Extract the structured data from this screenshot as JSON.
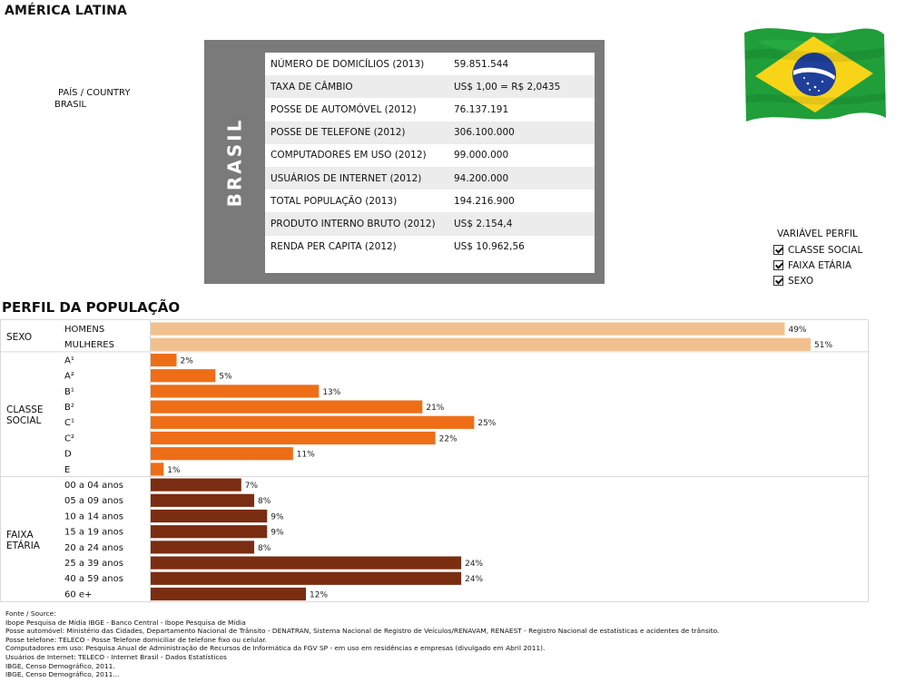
{
  "header": {
    "region_title": "AMÉRICA LATINA"
  },
  "country": {
    "label": "PAÍS / COUNTRY",
    "value": "BRASIL"
  },
  "info_panel": {
    "vertical_label": "BRASIL",
    "rows": [
      {
        "key": "NÚMERO DE DOMICÍLIOS (2013)",
        "value": "59.851.544"
      },
      {
        "key": "TAXA DE CÂMBIO",
        "value": "US$ 1,00 = R$ 2,0435"
      },
      {
        "key": "POSSE DE AUTOMÓVEL (2012)",
        "value": "76.137.191"
      },
      {
        "key": "POSSE DE TELEFONE (2012)",
        "value": "306.100.000"
      },
      {
        "key": "COMPUTADORES EM USO (2012)",
        "value": "99.000.000"
      },
      {
        "key": "USUÁRIOS DE INTERNET (2012)",
        "value": "94.200.000"
      },
      {
        "key": "TOTAL POPULAÇÃO (2013)",
        "value": "194.216.900"
      },
      {
        "key": "PRODUTO INTERNO BRUTO (2012)",
        "value": "US$ 2.154,4"
      },
      {
        "key": "RENDA PER CAPITA (2012)",
        "value": "US$ 10.962,56"
      }
    ]
  },
  "flag": {
    "icon": "brazil-flag-icon",
    "green": "#1f9e3a",
    "yellow": "#f7d417",
    "blue": "#1f3f9a"
  },
  "legend": {
    "title": "VARIÁVEL PERFIL",
    "items": [
      {
        "label": "CLASSE SOCIAL",
        "checked": true
      },
      {
        "label": "FAIXA ETÁRIA",
        "checked": true
      },
      {
        "label": "SEXO",
        "checked": true
      }
    ]
  },
  "section_title": "PERFIL DA POPULAÇÃO",
  "chart_data": {
    "type": "bar",
    "orientation": "horizontal",
    "xlim": [
      0,
      52
    ],
    "value_suffix": "%",
    "groups": [
      {
        "label": "SEXO",
        "color": "#f2c08e",
        "categories": [
          "HOMENS",
          "MULHERES"
        ],
        "values": [
          49,
          51
        ]
      },
      {
        "label": "CLASSE SOCIAL",
        "color": "#ee6e17",
        "categories": [
          "A¹",
          "A²",
          "B¹",
          "B²",
          "C¹",
          "C²",
          "D",
          "E"
        ],
        "values": [
          2,
          5,
          13,
          21,
          25,
          22,
          11,
          1
        ]
      },
      {
        "label": "FAIXA ETÁRIA",
        "color": "#7b2d12",
        "categories": [
          "00 a 04 anos",
          "05 a 09 anos",
          "10 a 14 anos",
          "15 a 19 anos",
          "20 a 24 anos",
          "25 a 39 anos",
          "40 a 59 anos",
          "60 e+"
        ],
        "values": [
          7,
          8,
          9,
          9,
          8,
          24,
          24,
          12
        ]
      }
    ]
  },
  "sources": [
    "Fonte / Source:",
    "Ibope Pesquisa de Mídia IBGE - Banco Central - Ibope Pesquisa de Mídia",
    "Posse automóvel: Ministério das Cidades, Departamento Nacional de Trânsito - DENATRAN, Sistema Nacional de Registro de Veículos/RENAVAM, RENAEST - Registro Nacional de estatísticas e acidentes de trânsito.",
    "Posse telefone: TELECO - Posse Telefone domiciliar de telefone fixo ou celular.",
    "Computadores em uso: Pesquisa Anual de Administração de Recursos de Informática da FGV SP - em uso em residências e empresas (divulgado em Abril 2011).",
    "Usuários de Internet: TELECO - Internet Brasil - Dados Estatísticos",
    "IBGE, Censo Demográfico, 2011.",
    "IBGE, Censo Demográfico, 2011..."
  ]
}
